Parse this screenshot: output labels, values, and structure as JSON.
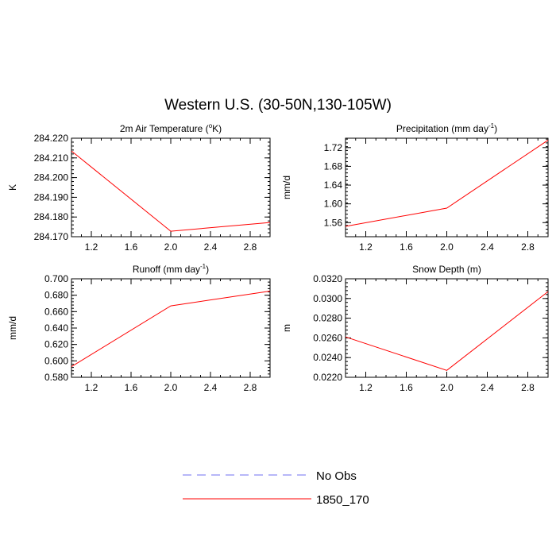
{
  "figure_title": "Western U.S. (30-50N,130-105W)",
  "legend": {
    "entries": [
      {
        "label": "No Obs",
        "color": "#6f6ff0",
        "style": "dashed"
      },
      {
        "label": "1850_170",
        "color": "#ff0000",
        "style": "solid"
      }
    ]
  },
  "chart_data": [
    {
      "type": "line",
      "title_main": "2m Air Temperature (",
      "title_sup": "o",
      "title_tail": "K)",
      "ylabel": "K",
      "xlim": [
        1.0,
        3.0
      ],
      "ylim": [
        284.17,
        284.22
      ],
      "xticks": [
        "1.2",
        "1.6",
        "2.0",
        "2.4",
        "2.8"
      ],
      "yticks": [
        "284.170",
        "284.180",
        "284.190",
        "284.200",
        "284.210",
        "284.220"
      ],
      "series": [
        {
          "name": "1850_170",
          "color": "#ff0000",
          "x": [
            1.0,
            2.0,
            3.0
          ],
          "y": [
            284.2135,
            284.1728,
            284.1772
          ]
        }
      ]
    },
    {
      "type": "line",
      "title_main": "Precipitation (mm day",
      "title_sup": "-1",
      "title_tail": ")",
      "ylabel": "mm/d",
      "xlim": [
        1.0,
        3.0
      ],
      "ylim": [
        1.53,
        1.74
      ],
      "xticks": [
        "1.2",
        "1.6",
        "2.0",
        "2.4",
        "2.8"
      ],
      "yticks": [
        "1.56",
        "1.60",
        "1.64",
        "1.68",
        "1.72"
      ],
      "series": [
        {
          "name": "1850_170",
          "color": "#ff0000",
          "x": [
            1.0,
            2.0,
            3.0
          ],
          "y": [
            1.552,
            1.591,
            1.736
          ]
        }
      ]
    },
    {
      "type": "line",
      "title_main": "Runoff (mm day",
      "title_sup": "-1",
      "title_tail": ")",
      "ylabel": "mm/d",
      "xlim": [
        1.0,
        3.0
      ],
      "ylim": [
        0.58,
        0.7
      ],
      "xticks": [
        "1.2",
        "1.6",
        "2.0",
        "2.4",
        "2.8"
      ],
      "yticks": [
        "0.580",
        "0.600",
        "0.620",
        "0.640",
        "0.660",
        "0.680",
        "0.700"
      ],
      "series": [
        {
          "name": "1850_170",
          "color": "#ff0000",
          "x": [
            1.0,
            2.0,
            3.0
          ],
          "y": [
            0.593,
            0.667,
            0.685
          ]
        }
      ]
    },
    {
      "type": "line",
      "title_main": "Snow Depth (m)",
      "title_sup": "",
      "title_tail": "",
      "ylabel": "m",
      "xlim": [
        1.0,
        3.0
      ],
      "ylim": [
        0.022,
        0.032
      ],
      "xticks": [
        "1.2",
        "1.6",
        "2.0",
        "2.4",
        "2.8"
      ],
      "yticks": [
        "0.0220",
        "0.0240",
        "0.0260",
        "0.0280",
        "0.0300",
        "0.0320"
      ],
      "series": [
        {
          "name": "1850_170",
          "color": "#ff0000",
          "x": [
            1.0,
            2.0,
            3.0
          ],
          "y": [
            0.0261,
            0.0227,
            0.0307
          ]
        }
      ]
    }
  ]
}
